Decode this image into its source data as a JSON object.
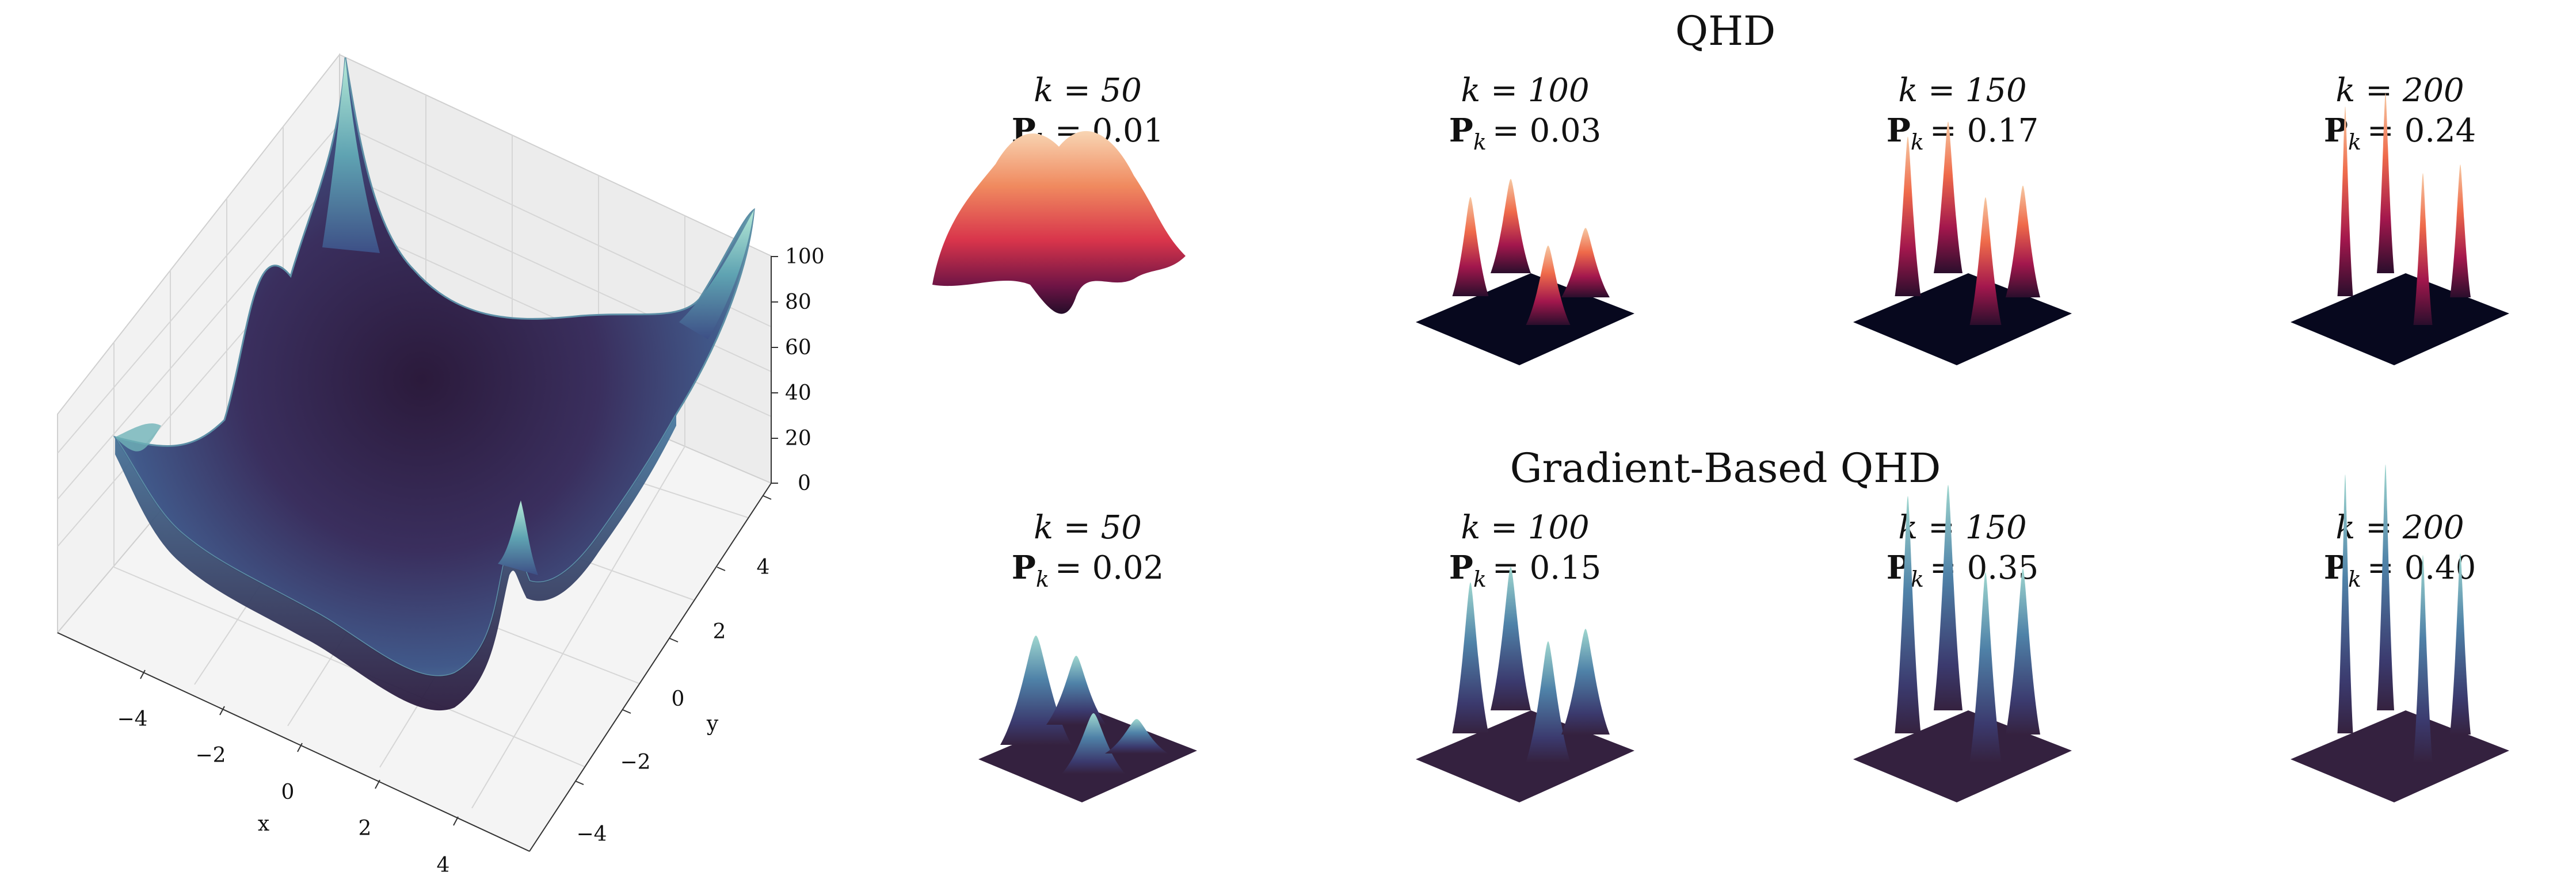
{
  "chart_data": [
    {
      "id": "surface",
      "type": "surface3d",
      "title": "",
      "xlabel": "x",
      "ylabel": "y",
      "zlabel": "",
      "x_ticks": [
        "−4",
        "−2",
        "0",
        "2",
        "4"
      ],
      "y_ticks": [
        "−4",
        "−2",
        "0",
        "2",
        "4"
      ],
      "z_ticks": [
        "0",
        "20",
        "40",
        "60",
        "80",
        "100"
      ],
      "xlim": [
        -5,
        5
      ],
      "ylim": [
        -5,
        5
      ],
      "zlim": [
        0,
        100
      ],
      "grid": true,
      "colormap": "mako_r",
      "colors": {
        "low": "#2c1a3d",
        "mid": "#3b5b8c",
        "high": "#9fe0cf",
        "pane": "#f2f2f2"
      }
    },
    {
      "id": "qhd",
      "type": "surface3d_panels",
      "title": "QHD",
      "colormap": "rocket",
      "panels": [
        {
          "k_label": "k = 50",
          "p_label": "P",
          "p_sub": "k",
          "p_value": "= 0.01",
          "k": 50,
          "p": 0.01
        },
        {
          "k_label": "k = 100",
          "p_label": "P",
          "p_sub": "k",
          "p_value": "= 0.03",
          "k": 100,
          "p": 0.03
        },
        {
          "k_label": "k = 150",
          "p_label": "P",
          "p_sub": "k",
          "p_value": "= 0.17",
          "k": 150,
          "p": 0.17
        },
        {
          "k_label": "k = 200",
          "p_label": "P",
          "p_sub": "k",
          "p_value": "= 0.24",
          "k": 200,
          "p": 0.24
        }
      ]
    },
    {
      "id": "gqhd",
      "type": "surface3d_panels",
      "title": "Gradient-Based QHD",
      "colormap": "mako",
      "panels": [
        {
          "k_label": "k = 50",
          "p_label": "P",
          "p_sub": "k",
          "p_value": "= 0.02",
          "k": 50,
          "p": 0.02
        },
        {
          "k_label": "k = 100",
          "p_label": "P",
          "p_sub": "k",
          "p_value": "= 0.15",
          "k": 100,
          "p": 0.15
        },
        {
          "k_label": "k = 150",
          "p_label": "P",
          "p_sub": "k",
          "p_value": "= 0.35",
          "k": 150,
          "p": 0.35
        },
        {
          "k_label": "k = 200",
          "p_label": "P",
          "p_sub": "k",
          "p_value": "= 0.40",
          "k": 200,
          "p": 0.4
        }
      ]
    }
  ]
}
